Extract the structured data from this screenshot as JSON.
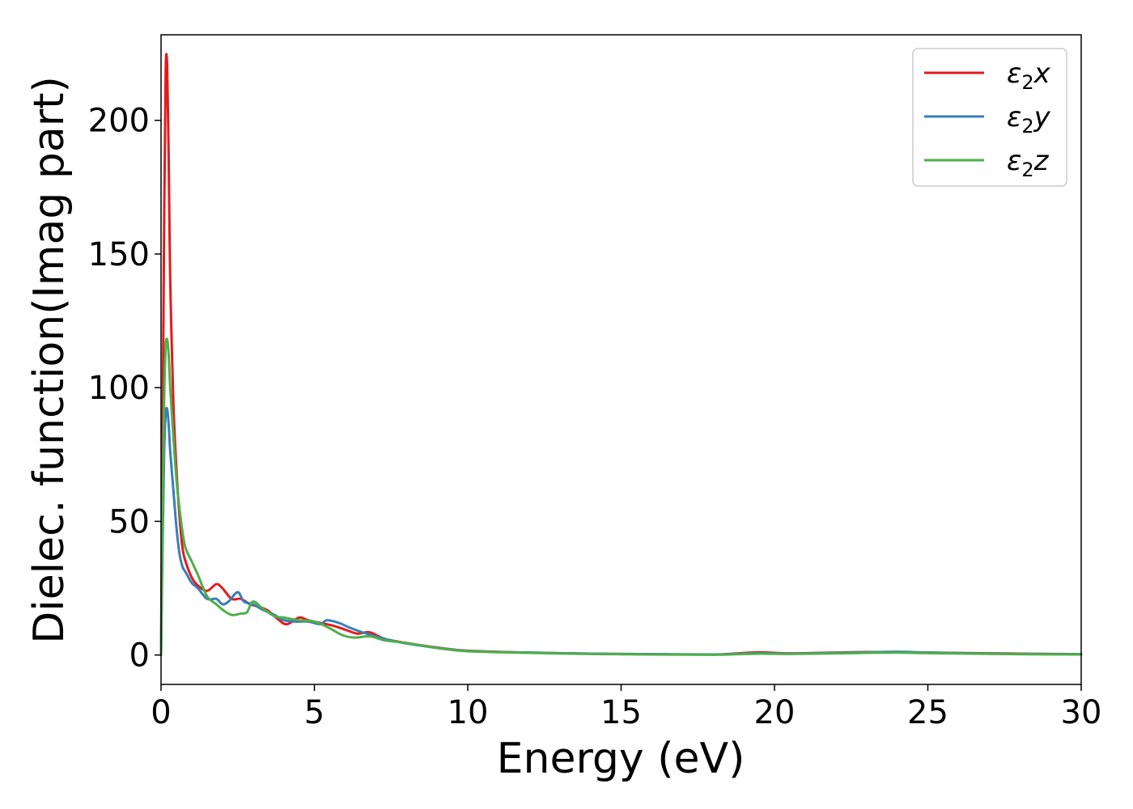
{
  "chart_data": {
    "type": "line",
    "title": "",
    "xlabel": "Energy (eV)",
    "ylabel": "Dielec. function(Imag part)",
    "xlim": [
      0,
      30
    ],
    "ylim": [
      -11,
      232
    ],
    "xticks": [
      0,
      5,
      10,
      15,
      20,
      25,
      30
    ],
    "yticks": [
      0,
      50,
      100,
      150,
      200
    ],
    "grid": false,
    "legend_position": "top-right",
    "series": [
      {
        "name": "ε2x",
        "legend_base": "ε",
        "legend_sub": "2",
        "legend_suffix": "x",
        "color": "#e41a1c",
        "x": [
          0,
          0.05,
          0.1,
          0.15,
          0.2,
          0.25,
          0.3,
          0.4,
          0.5,
          0.6,
          0.7,
          0.8,
          1.0,
          1.2,
          1.5,
          1.8,
          2.0,
          2.3,
          2.6,
          2.9,
          3.2,
          3.5,
          3.8,
          4.1,
          4.5,
          4.8,
          5.2,
          5.6,
          6.0,
          6.4,
          6.8,
          7.3,
          8.0,
          9.0,
          10.0,
          12.0,
          14.0,
          16.0,
          18.0,
          18.5,
          19.5,
          20.5,
          22.0,
          23.0,
          24.0,
          25.0,
          26.5,
          28.0,
          30.0
        ],
        "y": [
          0,
          80,
          160,
          218,
          220,
          185,
          140,
          95,
          70,
          52,
          40,
          35,
          29,
          26,
          24,
          26.5,
          25,
          21,
          21,
          19,
          18,
          16.5,
          13.5,
          11.5,
          14,
          13,
          12,
          11,
          9.5,
          8,
          8.5,
          6,
          4.5,
          2.8,
          1.6,
          0.9,
          0.5,
          0.3,
          0.2,
          0.4,
          1.0,
          0.6,
          0.9,
          1.1,
          1.0,
          0.9,
          0.7,
          0.5,
          0.3
        ]
      },
      {
        "name": "ε2y",
        "legend_base": "ε",
        "legend_sub": "2",
        "legend_suffix": "y",
        "color": "#377eb8",
        "x": [
          0,
          0.05,
          0.1,
          0.15,
          0.2,
          0.25,
          0.3,
          0.4,
          0.5,
          0.6,
          0.7,
          0.8,
          1.0,
          1.2,
          1.5,
          1.8,
          2.0,
          2.2,
          2.5,
          2.7,
          3.0,
          3.3,
          3.7,
          4.0,
          4.4,
          4.8,
          5.2,
          5.4,
          5.8,
          6.2,
          6.7,
          7.3,
          8.0,
          9.0,
          10.0,
          12.0,
          14.0,
          16.0,
          18.0,
          18.5,
          19.5,
          20.5,
          22.0,
          23.0,
          24.0,
          25.0,
          26.5,
          28.0,
          30.0
        ],
        "y": [
          0,
          40,
          75,
          90,
          92,
          86,
          76,
          62,
          48,
          38,
          33,
          31,
          27,
          25,
          21,
          21,
          19,
          20,
          23.5,
          20,
          19,
          17,
          15,
          13,
          12.5,
          12.5,
          11.5,
          13,
          12,
          10,
          8,
          6,
          4.3,
          2.7,
          1.5,
          0.9,
          0.5,
          0.3,
          0.2,
          0.3,
          0.7,
          0.5,
          0.8,
          1.0,
          1.2,
          0.9,
          0.6,
          0.4,
          0.3
        ]
      },
      {
        "name": "ε2z",
        "legend_base": "ε",
        "legend_sub": "2",
        "legend_suffix": "z",
        "color": "#4daf4a",
        "x": [
          0,
          0.05,
          0.1,
          0.15,
          0.2,
          0.25,
          0.3,
          0.4,
          0.5,
          0.6,
          0.7,
          0.8,
          1.0,
          1.2,
          1.5,
          1.8,
          2.0,
          2.3,
          2.6,
          2.8,
          3.0,
          3.3,
          3.7,
          4.0,
          4.5,
          5.0,
          5.5,
          5.9,
          6.3,
          6.8,
          7.3,
          8.0,
          9.0,
          10.0,
          12.0,
          14.0,
          16.0,
          18.0,
          18.5,
          19.5,
          20.5,
          22.0,
          23.0,
          24.0,
          25.0,
          26.5,
          28.0,
          30.0
        ],
        "y": [
          0,
          50,
          95,
          115,
          118,
          112,
          100,
          82,
          66,
          55,
          46,
          40,
          35,
          30,
          22,
          19,
          17,
          15,
          15.5,
          16,
          20,
          17.5,
          14.5,
          14,
          13,
          12.5,
          10,
          7.5,
          6.5,
          7,
          5.5,
          4.5,
          2.6,
          1.4,
          0.8,
          0.4,
          0.2,
          0.1,
          0.2,
          0.5,
          0.4,
          0.6,
          0.8,
          0.9,
          0.7,
          0.5,
          0.3,
          0.2
        ]
      }
    ]
  }
}
